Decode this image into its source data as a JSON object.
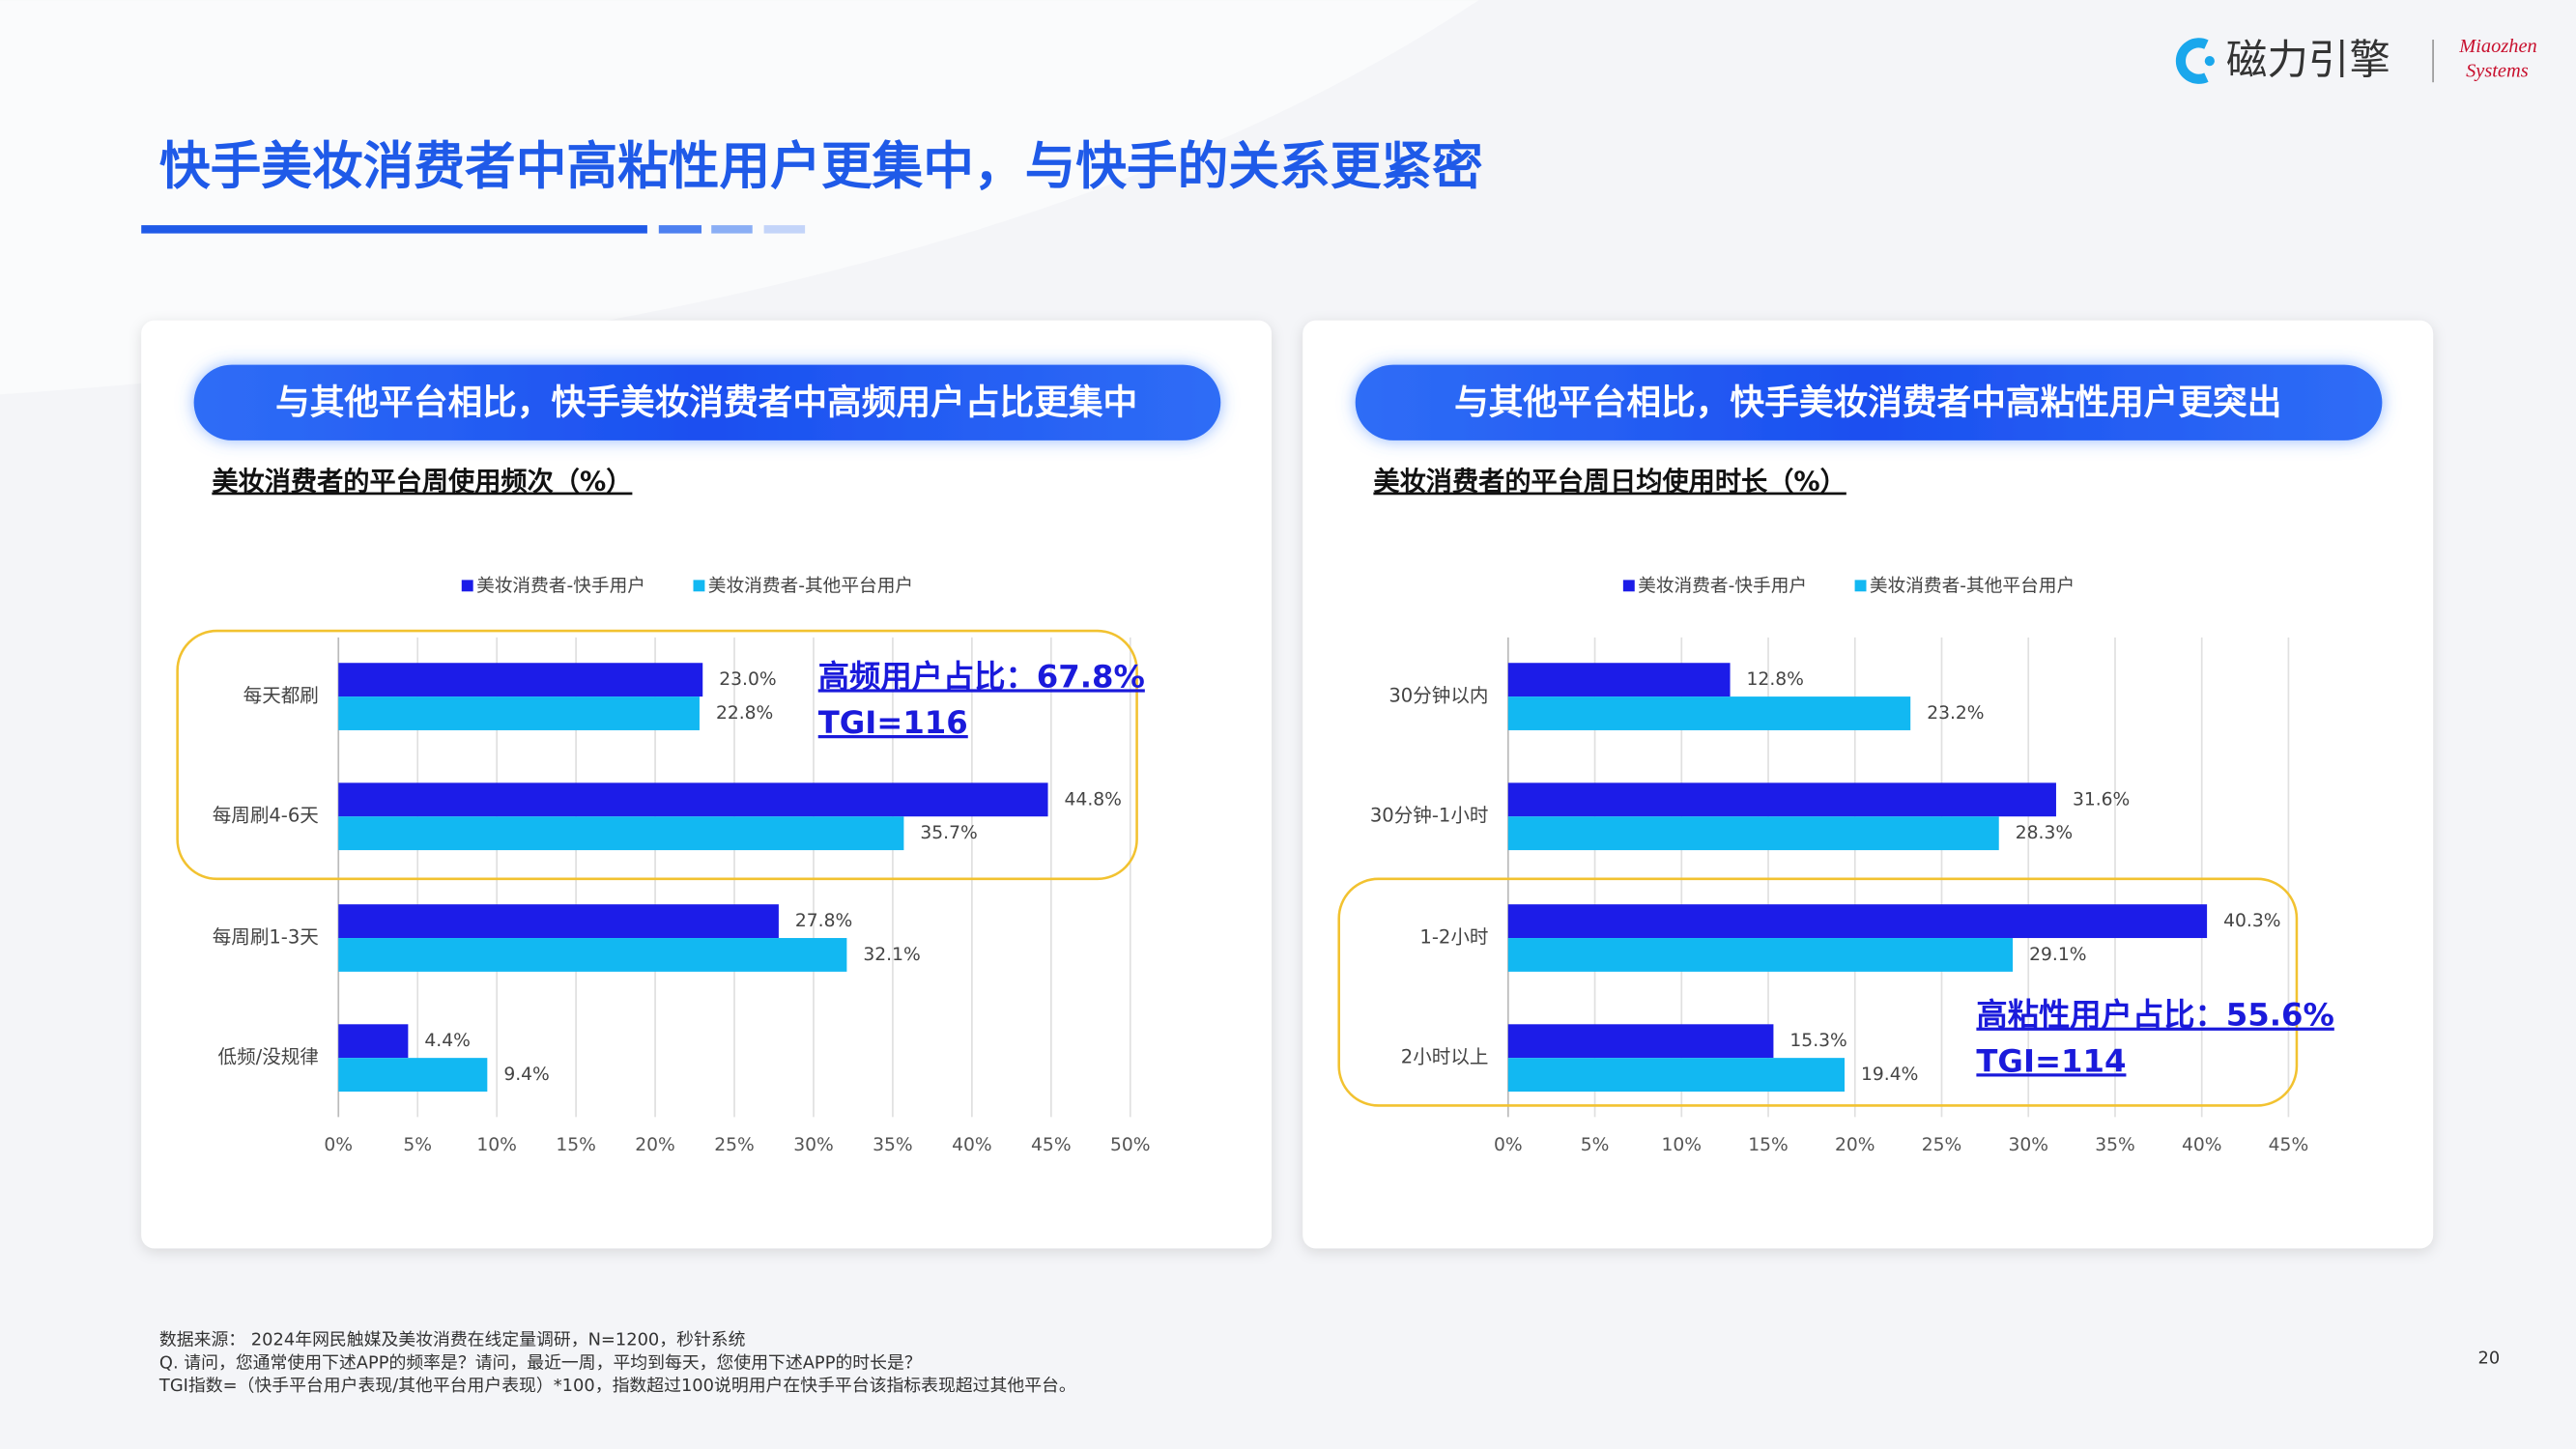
{
  "header": {
    "title": "快手美妆消费者中高粘性用户更集中，与快手的关系更紧密"
  },
  "logo": {
    "name": "磁力引擎",
    "brand_line1": "Miaozhen",
    "brand_line2": "Systems"
  },
  "chart_data": [
    {
      "type": "bar",
      "orientation": "horizontal",
      "banner": "与其他平台相比，快手美妆消费者中高频用户占比更集中",
      "title": "美妆消费者的平台周使用频次（%）",
      "categories": [
        "每天都刷",
        "每周刷4-6天",
        "每周刷1-3天",
        "低频/没规律"
      ],
      "series": [
        {
          "name": "美妆消费者-快手用户",
          "color": "#1c1ce8",
          "values": [
            23.0,
            44.8,
            27.8,
            4.4
          ],
          "value_labels": [
            "23.0%",
            "44.8%",
            "27.8%",
            "4.4%"
          ]
        },
        {
          "name": "美妆消费者-其他平台用户",
          "color": "#12b8f2",
          "values": [
            22.8,
            35.7,
            32.1,
            9.4
          ],
          "value_labels": [
            "22.8%",
            "35.7%",
            "32.1%",
            "9.4%"
          ]
        }
      ],
      "xlim": [
        0,
        50
      ],
      "xticks": [
        {
          "value": 0,
          "label": "0%"
        },
        {
          "value": 5,
          "label": "5%"
        },
        {
          "value": 10,
          "label": "10%"
        },
        {
          "value": 15,
          "label": "15%"
        },
        {
          "value": 20,
          "label": "20%"
        },
        {
          "value": 25,
          "label": "25%"
        },
        {
          "value": 30,
          "label": "30%"
        },
        {
          "value": 35,
          "label": "35%"
        },
        {
          "value": 40,
          "label": "40%"
        },
        {
          "value": 45,
          "label": "45%"
        },
        {
          "value": 50,
          "label": "50%"
        }
      ],
      "grid": true,
      "annotations": [
        "高频用户占比：67.8%",
        "TGI=116"
      ]
    },
    {
      "type": "bar",
      "orientation": "horizontal",
      "banner": "与其他平台相比，快手美妆消费者中高粘性用户更突出",
      "title": "美妆消费者的平台周日均使用时长（%）",
      "categories": [
        "30分钟以内",
        "30分钟-1小时",
        "1-2小时",
        "2小时以上"
      ],
      "series": [
        {
          "name": "美妆消费者-快手用户",
          "color": "#1c1ce8",
          "values": [
            12.8,
            31.6,
            40.3,
            15.3
          ],
          "value_labels": [
            "12.8%",
            "31.6%",
            "40.3%",
            "15.3%"
          ]
        },
        {
          "name": "美妆消费者-其他平台用户",
          "color": "#12b8f2",
          "values": [
            23.2,
            28.3,
            29.1,
            19.4
          ],
          "value_labels": [
            "23.2%",
            "28.3%",
            "29.1%",
            "19.4%"
          ]
        }
      ],
      "xlim": [
        0,
        45
      ],
      "xticks": [
        {
          "value": 0,
          "label": "0%"
        },
        {
          "value": 5,
          "label": "5%"
        },
        {
          "value": 10,
          "label": "10%"
        },
        {
          "value": 15,
          "label": "15%"
        },
        {
          "value": 20,
          "label": "20%"
        },
        {
          "value": 25,
          "label": "25%"
        },
        {
          "value": 30,
          "label": "30%"
        },
        {
          "value": 35,
          "label": "35%"
        },
        {
          "value": 40,
          "label": "40%"
        },
        {
          "value": 45,
          "label": "45%"
        }
      ],
      "grid": true,
      "annotations": [
        "高粘性用户占比：55.6%",
        "TGI=114"
      ]
    }
  ],
  "footer": {
    "notes": [
      "数据来源： 2024年网民触媒及美妆消费在线定量调研，N=1200，秒针系统",
      "Q. 请问，您通常使用下述APP的频率是？请问，最近一周，平均到每天，您使用下述APP的时长是？",
      "TGI指数=（快手平台用户表现/其他平台用户表现）*100，指数超过100说明用户在快手平台该指标表现超过其他平台。"
    ],
    "page_number": "20"
  }
}
